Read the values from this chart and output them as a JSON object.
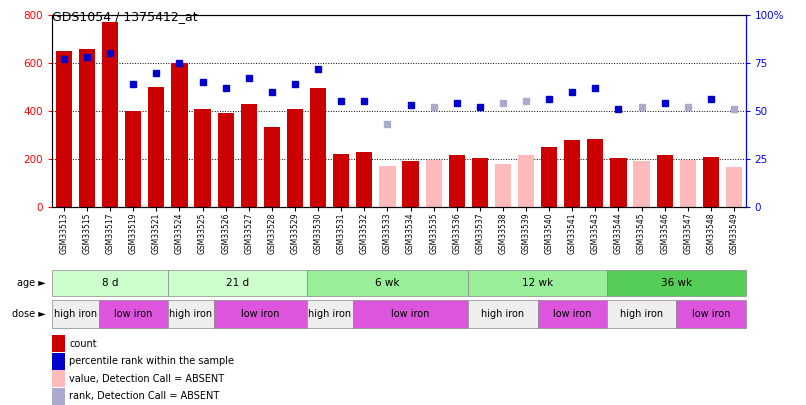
{
  "title": "GDS1054 / 1375412_at",
  "samples": [
    "GSM33513",
    "GSM33515",
    "GSM33517",
    "GSM33519",
    "GSM33521",
    "GSM33524",
    "GSM33525",
    "GSM33526",
    "GSM33527",
    "GSM33528",
    "GSM33529",
    "GSM33530",
    "GSM33531",
    "GSM33532",
    "GSM33533",
    "GSM33534",
    "GSM33535",
    "GSM33536",
    "GSM33537",
    "GSM33538",
    "GSM33539",
    "GSM33540",
    "GSM33541",
    "GSM33543",
    "GSM33544",
    "GSM33545",
    "GSM33546",
    "GSM33547",
    "GSM33548",
    "GSM33549"
  ],
  "counts": [
    650,
    660,
    770,
    400,
    500,
    600,
    410,
    390,
    430,
    335,
    410,
    495,
    220,
    230,
    170,
    190,
    195,
    215,
    205,
    180,
    215,
    250,
    280,
    285,
    205,
    190,
    215,
    195,
    210,
    165
  ],
  "percentile_ranks": [
    77,
    78,
    80,
    64,
    70,
    75,
    65,
    62,
    67,
    60,
    64,
    72,
    55,
    55,
    43,
    53,
    52,
    54,
    52,
    54,
    55,
    56,
    60,
    62,
    51,
    52,
    54,
    52,
    56,
    51
  ],
  "absent": [
    false,
    false,
    false,
    false,
    false,
    false,
    false,
    false,
    false,
    false,
    false,
    false,
    false,
    false,
    true,
    false,
    true,
    false,
    false,
    true,
    true,
    false,
    false,
    false,
    false,
    true,
    false,
    true,
    false,
    true
  ],
  "bar_color_present": "#CC0000",
  "bar_color_absent": "#FFBBBB",
  "dot_color_present": "#0000CC",
  "dot_color_absent": "#AAAACC",
  "ylim_left": [
    0,
    800
  ],
  "ylim_right": [
    0,
    100
  ],
  "yticks_left": [
    0,
    200,
    400,
    600,
    800
  ],
  "yticks_right": [
    0,
    25,
    50,
    75,
    100
  ],
  "age_groups": [
    {
      "label": "8 d",
      "start": 0,
      "end": 5,
      "color": "#CCFFCC"
    },
    {
      "label": "21 d",
      "start": 5,
      "end": 11,
      "color": "#CCFFCC"
    },
    {
      "label": "6 wk",
      "start": 11,
      "end": 18,
      "color": "#99EE99"
    },
    {
      "label": "12 wk",
      "start": 18,
      "end": 24,
      "color": "#99EE99"
    },
    {
      "label": "36 wk",
      "start": 24,
      "end": 30,
      "color": "#55CC55"
    }
  ],
  "dose_groups": [
    {
      "label": "high iron",
      "start": 0,
      "end": 2,
      "color": "#EEEEEE"
    },
    {
      "label": "low iron",
      "start": 2,
      "end": 5,
      "color": "#DD55DD"
    },
    {
      "label": "high iron",
      "start": 5,
      "end": 7,
      "color": "#EEEEEE"
    },
    {
      "label": "low iron",
      "start": 7,
      "end": 11,
      "color": "#DD55DD"
    },
    {
      "label": "high iron",
      "start": 11,
      "end": 13,
      "color": "#EEEEEE"
    },
    {
      "label": "low iron",
      "start": 13,
      "end": 18,
      "color": "#DD55DD"
    },
    {
      "label": "high iron",
      "start": 18,
      "end": 21,
      "color": "#EEEEEE"
    },
    {
      "label": "low iron",
      "start": 21,
      "end": 24,
      "color": "#DD55DD"
    },
    {
      "label": "high iron",
      "start": 24,
      "end": 27,
      "color": "#EEEEEE"
    },
    {
      "label": "low iron",
      "start": 27,
      "end": 30,
      "color": "#DD55DD"
    }
  ],
  "legend_items": [
    {
      "color": "#CC0000",
      "label": "count"
    },
    {
      "color": "#0000CC",
      "label": "percentile rank within the sample"
    },
    {
      "color": "#FFBBBB",
      "label": "value, Detection Call = ABSENT"
    },
    {
      "color": "#AAAACC",
      "label": "rank, Detection Call = ABSENT"
    }
  ]
}
